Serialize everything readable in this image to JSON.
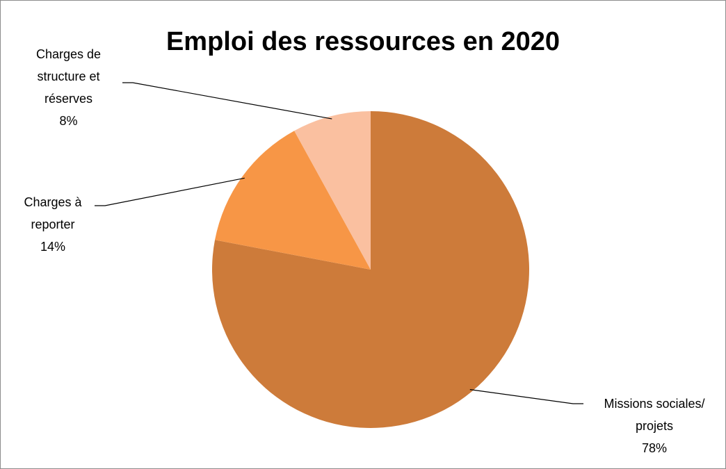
{
  "chart_data": {
    "type": "pie",
    "title": "Emploi des ressources en 2020",
    "categories": [
      "Missions sociales/ projets",
      "Charges à reporter",
      "Charges de structure et réserves"
    ],
    "values": [
      78,
      14,
      8
    ],
    "value_labels": [
      "78%",
      "14%",
      "8%"
    ],
    "colors": [
      "#cd7b3a",
      "#f79646",
      "#fac0a0"
    ]
  }
}
